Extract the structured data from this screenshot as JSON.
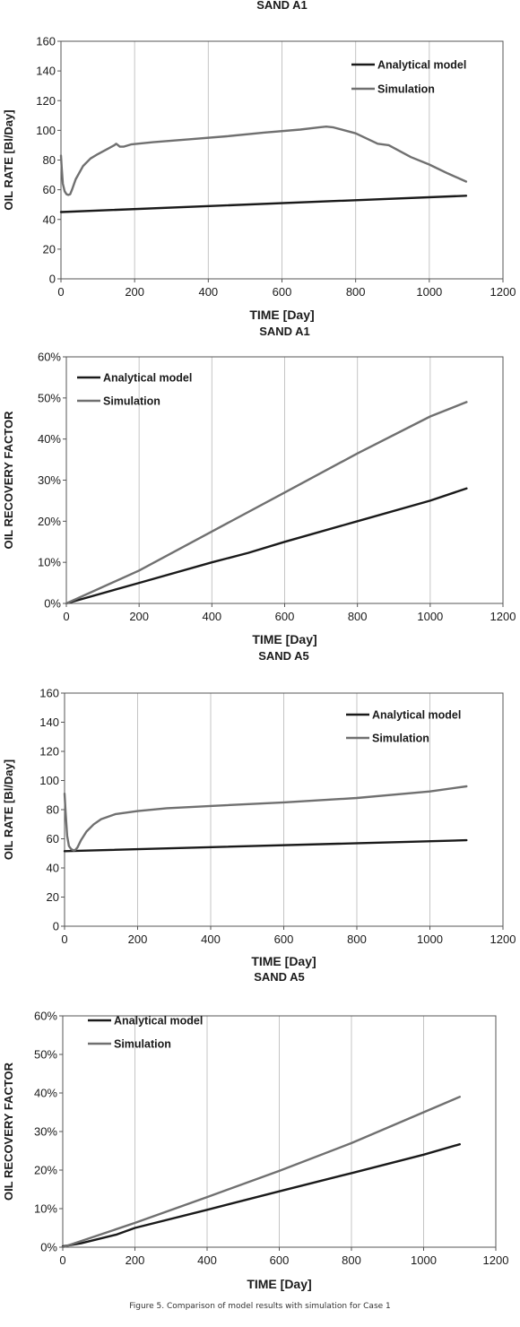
{
  "figure": {
    "caption": "Figure 5. Comparison of model results with simulation for Case 1"
  },
  "colors": {
    "analytical": "#1a1a1a",
    "simulation": "#707070",
    "grid": "#c4c4c4",
    "axis": "#555555"
  },
  "chart_data": [
    {
      "type": "line",
      "title": "SAND A1",
      "xlabel": "TIME [Day]",
      "ylabel": "OIL RATE [Bl/Day]",
      "xlim": [
        0,
        1200
      ],
      "xticks": [
        0,
        200,
        400,
        600,
        800,
        1000,
        1200
      ],
      "ylim": [
        0,
        160
      ],
      "yticks": [
        0,
        20,
        40,
        60,
        80,
        100,
        120,
        140,
        160
      ],
      "y_format": "number",
      "grid": "vertical",
      "legend_position": "top-right",
      "series": [
        {
          "name": "Analytical model",
          "color": "#1a1a1a",
          "x": [
            0,
            1100
          ],
          "y": [
            45,
            56
          ]
        },
        {
          "name": "Simulation",
          "color": "#707070",
          "x": [
            0,
            2,
            5,
            10,
            15,
            20,
            25,
            30,
            40,
            60,
            80,
            100,
            130,
            145,
            150,
            160,
            170,
            190,
            250,
            350,
            450,
            550,
            650,
            700,
            720,
            740,
            800,
            860,
            890,
            950,
            1000,
            1050,
            1100
          ],
          "y": [
            83,
            75,
            64,
            59,
            57,
            56.5,
            57,
            60,
            67,
            76,
            81,
            84,
            88,
            90,
            91,
            89,
            89,
            90.5,
            92,
            94,
            96,
            98.5,
            100.5,
            102,
            102.5,
            102,
            98,
            91,
            90,
            82,
            77,
            71,
            65.5
          ]
        }
      ]
    },
    {
      "type": "line",
      "title": "SAND A1",
      "xlabel": "TIME [Day]",
      "ylabel": "OIL RECOVERY FACTOR",
      "xlim": [
        0,
        1200
      ],
      "xticks": [
        0,
        200,
        400,
        600,
        800,
        1000,
        1200
      ],
      "ylim": [
        0,
        0.6
      ],
      "yticks": [
        0,
        0.1,
        0.2,
        0.3,
        0.4,
        0.5,
        0.6
      ],
      "y_format": "percent",
      "grid": "vertical",
      "legend_position": "top-left",
      "series": [
        {
          "name": "Analytical model",
          "color": "#1a1a1a",
          "x": [
            0,
            200,
            400,
            500,
            600,
            800,
            1000,
            1100
          ],
          "y": [
            0,
            0.05,
            0.1,
            0.123,
            0.15,
            0.2,
            0.25,
            0.28
          ]
        },
        {
          "name": "Simulation",
          "color": "#707070",
          "x": [
            0,
            200,
            400,
            600,
            800,
            1000,
            1100
          ],
          "y": [
            0,
            0.08,
            0.175,
            0.27,
            0.365,
            0.455,
            0.49
          ]
        }
      ]
    },
    {
      "type": "line",
      "title": "SAND A5",
      "xlabel": "TIME [Day]",
      "ylabel": "OIL RATE [Bl/Day]",
      "xlim": [
        0,
        1200
      ],
      "xticks": [
        0,
        200,
        400,
        600,
        800,
        1000,
        1200
      ],
      "ylim": [
        0,
        160
      ],
      "yticks": [
        0,
        20,
        40,
        60,
        80,
        100,
        120,
        140,
        160
      ],
      "y_format": "number",
      "grid": "vertical",
      "legend_position": "top-right",
      "series": [
        {
          "name": "Analytical model",
          "color": "#1a1a1a",
          "x": [
            0,
            1100
          ],
          "y": [
            51.5,
            59
          ]
        },
        {
          "name": "Simulation",
          "color": "#707070",
          "x": [
            0,
            3,
            7,
            12,
            18,
            25,
            30,
            35,
            45,
            60,
            80,
            100,
            140,
            200,
            280,
            400,
            600,
            800,
            1000,
            1100
          ],
          "y": [
            91,
            78,
            62,
            55,
            53,
            52,
            52.5,
            54,
            59,
            65,
            70,
            73.5,
            77,
            79,
            81,
            82.5,
            85,
            88,
            92.5,
            96
          ]
        }
      ]
    },
    {
      "type": "line",
      "title": "SAND A5",
      "xlabel": "TIME [Day]",
      "ylabel": "OIL RECOVERY FACTOR",
      "xlim": [
        0,
        1200
      ],
      "xticks": [
        0,
        200,
        400,
        600,
        800,
        1000,
        1200
      ],
      "ylim": [
        0,
        0.6
      ],
      "yticks": [
        0,
        0.1,
        0.2,
        0.3,
        0.4,
        0.5,
        0.6
      ],
      "y_format": "percent",
      "grid": "vertical",
      "legend_position": "top-left",
      "series": [
        {
          "name": "Analytical model",
          "color": "#1a1a1a",
          "x": [
            0,
            50,
            150,
            200,
            400,
            600,
            800,
            1000,
            1100
          ],
          "y": [
            0.002,
            0.01,
            0.033,
            0.05,
            0.097,
            0.145,
            0.192,
            0.24,
            0.267
          ]
        },
        {
          "name": "Simulation",
          "color": "#707070",
          "x": [
            0,
            200,
            400,
            600,
            800,
            1000,
            1100
          ],
          "y": [
            0,
            0.063,
            0.13,
            0.198,
            0.27,
            0.35,
            0.39
          ]
        }
      ]
    }
  ]
}
